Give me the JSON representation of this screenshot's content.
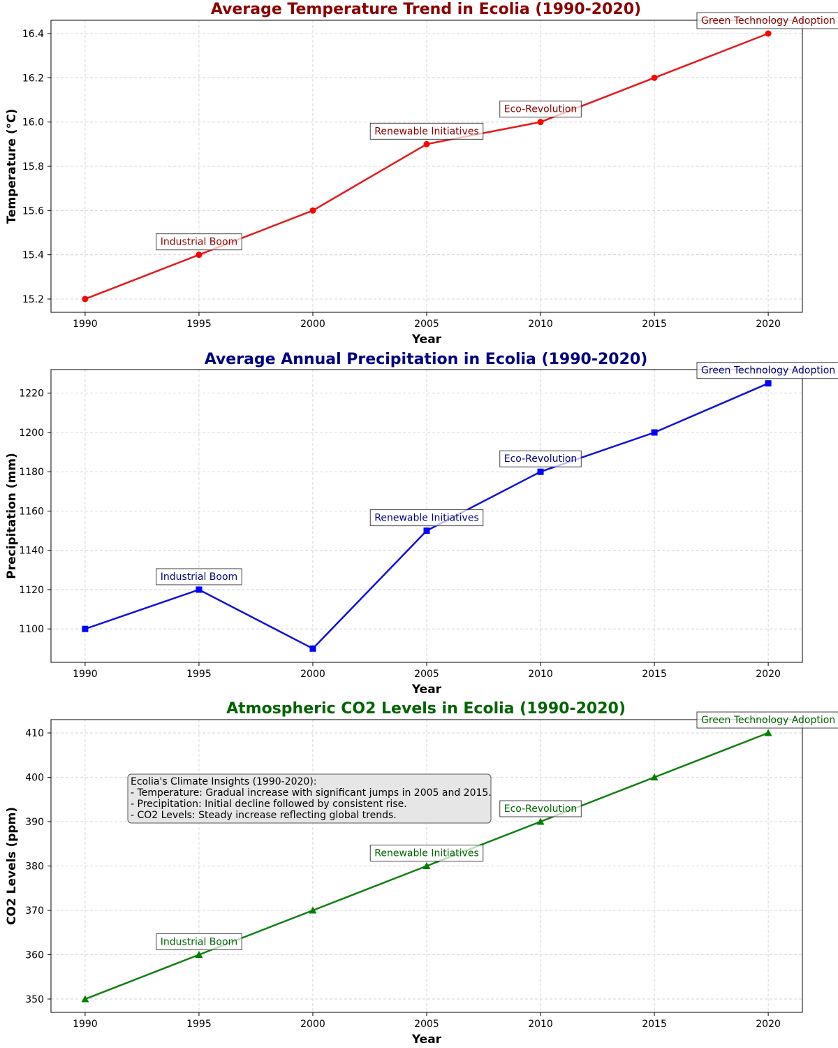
{
  "chart_data": [
    {
      "type": "line",
      "title": "Average Temperature Trend in Ecolia (1990-2020)",
      "xlabel": "Year",
      "ylabel": "Temperature (°C)",
      "x": [
        1990,
        1995,
        2000,
        2005,
        2010,
        2015,
        2020
      ],
      "series": [
        {
          "values": [
            15.2,
            15.4,
            15.6,
            15.9,
            16.0,
            16.2,
            16.4
          ]
        }
      ],
      "xlim": [
        1988.5,
        2021.5
      ],
      "ylim": [
        15.14,
        16.46
      ],
      "xticks": [
        "1990",
        "1995",
        "2000",
        "2005",
        "2010",
        "2015",
        "2020"
      ],
      "yticks": [
        "15.2",
        "15.4",
        "15.6",
        "15.8",
        "16.0",
        "16.2",
        "16.4"
      ],
      "marker": "circle",
      "color": "#e31a1c",
      "marker_color": "#ff0000",
      "title_color": "#8b0000",
      "annotation_color": "#8b0000",
      "grid": true,
      "annotations": [
        {
          "x": 1995,
          "label": "Industrial Boom"
        },
        {
          "x": 2005,
          "label": "Renewable Initiatives"
        },
        {
          "x": 2010,
          "label": "Eco-Revolution"
        },
        {
          "x": 2020,
          "label": "Green Technology Adoption"
        }
      ]
    },
    {
      "type": "line",
      "title": "Average Annual Precipitation in Ecolia (1990-2020)",
      "xlabel": "Year",
      "ylabel": "Precipitation (mm)",
      "x": [
        1990,
        1995,
        2000,
        2005,
        2010,
        2015,
        2020
      ],
      "series": [
        {
          "values": [
            1100,
            1120,
            1090,
            1150,
            1180,
            1200,
            1225
          ]
        }
      ],
      "xlim": [
        1988.5,
        2021.5
      ],
      "ylim": [
        1083,
        1232
      ],
      "xticks": [
        "1990",
        "1995",
        "2000",
        "2005",
        "2010",
        "2015",
        "2020"
      ],
      "yticks": [
        "1100",
        "1120",
        "1140",
        "1160",
        "1180",
        "1200",
        "1220"
      ],
      "marker": "square",
      "color": "#1010dd",
      "marker_color": "#0000ff",
      "title_color": "#000080",
      "annotation_color": "#000080",
      "grid": true,
      "annotations": [
        {
          "x": 1995,
          "label": "Industrial Boom"
        },
        {
          "x": 2005,
          "label": "Renewable Initiatives"
        },
        {
          "x": 2010,
          "label": "Eco-Revolution"
        },
        {
          "x": 2020,
          "label": "Green Technology Adoption"
        }
      ]
    },
    {
      "type": "line",
      "title": "Atmospheric CO2 Levels in Ecolia (1990-2020)",
      "xlabel": "Year",
      "ylabel": "CO2 Levels (ppm)",
      "x": [
        1990,
        1995,
        2000,
        2005,
        2010,
        2015,
        2020
      ],
      "series": [
        {
          "values": [
            350,
            360,
            370,
            380,
            390,
            400,
            410
          ]
        }
      ],
      "xlim": [
        1988.5,
        2021.5
      ],
      "ylim": [
        347,
        413
      ],
      "xticks": [
        "1990",
        "1995",
        "2000",
        "2005",
        "2010",
        "2015",
        "2020"
      ],
      "yticks": [
        "350",
        "360",
        "370",
        "380",
        "390",
        "400",
        "410"
      ],
      "marker": "triangle",
      "color": "#108010",
      "marker_color": "#008000",
      "title_color": "#006400",
      "annotation_color": "#006400",
      "grid": true,
      "annotations": [
        {
          "x": 1995,
          "label": "Industrial Boom"
        },
        {
          "x": 2005,
          "label": "Renewable Initiatives"
        },
        {
          "x": 2010,
          "label": "Eco-Revolution"
        },
        {
          "x": 2020,
          "label": "Green Technology Adoption"
        }
      ],
      "insight_box": [
        "Ecolia's Climate Insights (1990-2020):",
        "- Temperature: Gradual increase with significant jumps in 2005 and 2015.",
        "- Precipitation: Initial decline followed by consistent rise.",
        "- CO2 Levels: Steady increase reflecting global trends."
      ]
    }
  ]
}
